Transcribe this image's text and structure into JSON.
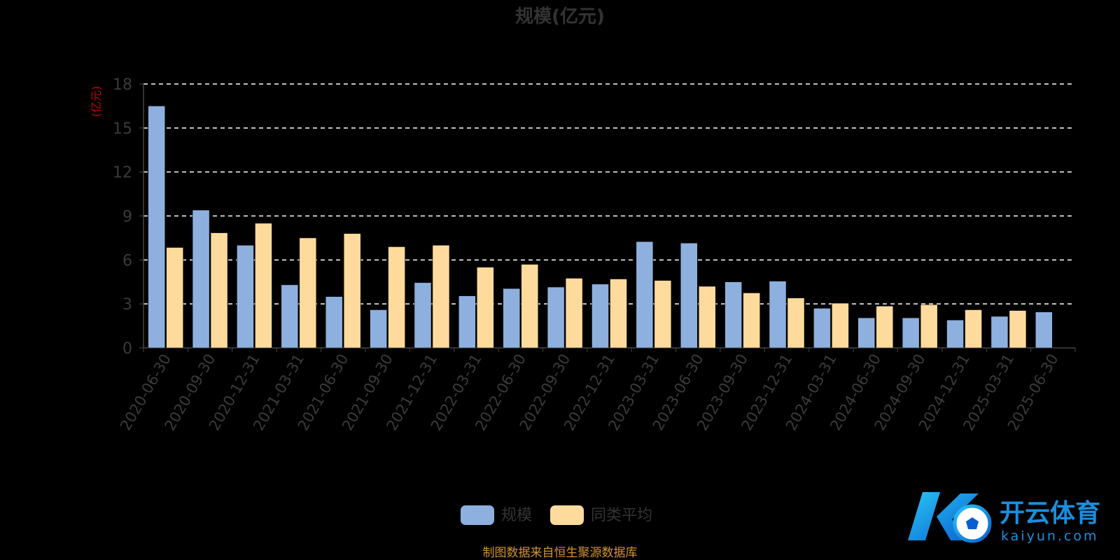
{
  "chart_data": {
    "type": "bar",
    "title": "规模(亿元)",
    "ylabel": "(亿元)",
    "ylim": [
      0,
      18
    ],
    "yticks": [
      "0",
      "3",
      "6",
      "9",
      "12",
      "15",
      "18"
    ],
    "grid": true,
    "legend_position": "bottom-center",
    "categories": [
      "2020-06-30",
      "2020-09-30",
      "2020-12-31",
      "2021-03-31",
      "2021-06-30",
      "2021-09-30",
      "2021-12-31",
      "2022-03-31",
      "2022-06-30",
      "2022-09-30",
      "2022-12-31",
      "2023-03-31",
      "2023-06-30",
      "2023-09-30",
      "2023-12-31",
      "2024-03-31",
      "2024-06-30",
      "2024-09-30",
      "2024-12-31",
      "2025-03-31",
      "2025-06-30"
    ],
    "series": [
      {
        "name": "规模",
        "color": "#8eb0de",
        "values": [
          16.5,
          9.4,
          7.0,
          4.3,
          3.5,
          2.6,
          4.45,
          3.55,
          4.05,
          4.15,
          4.35,
          7.25,
          7.15,
          4.5,
          4.55,
          2.7,
          2.05,
          2.05,
          1.9,
          2.15,
          2.45
        ]
      },
      {
        "name": "同类平均",
        "color": "#fedb9c",
        "values": [
          6.85,
          7.85,
          8.5,
          7.5,
          7.8,
          6.9,
          7.0,
          5.5,
          5.7,
          4.75,
          4.7,
          4.6,
          4.2,
          3.75,
          3.4,
          3.05,
          2.85,
          2.95,
          2.6,
          2.55,
          null
        ]
      }
    ]
  },
  "legend": {
    "items": [
      {
        "label": "规模",
        "color": "#8eb0de"
      },
      {
        "label": "同类平均",
        "color": "#fedb9c"
      }
    ]
  },
  "footer": {
    "source": "制图数据来自恒生聚源数据库"
  },
  "watermark": {
    "brand": "开云体育",
    "domain": "kaiyun.com"
  }
}
